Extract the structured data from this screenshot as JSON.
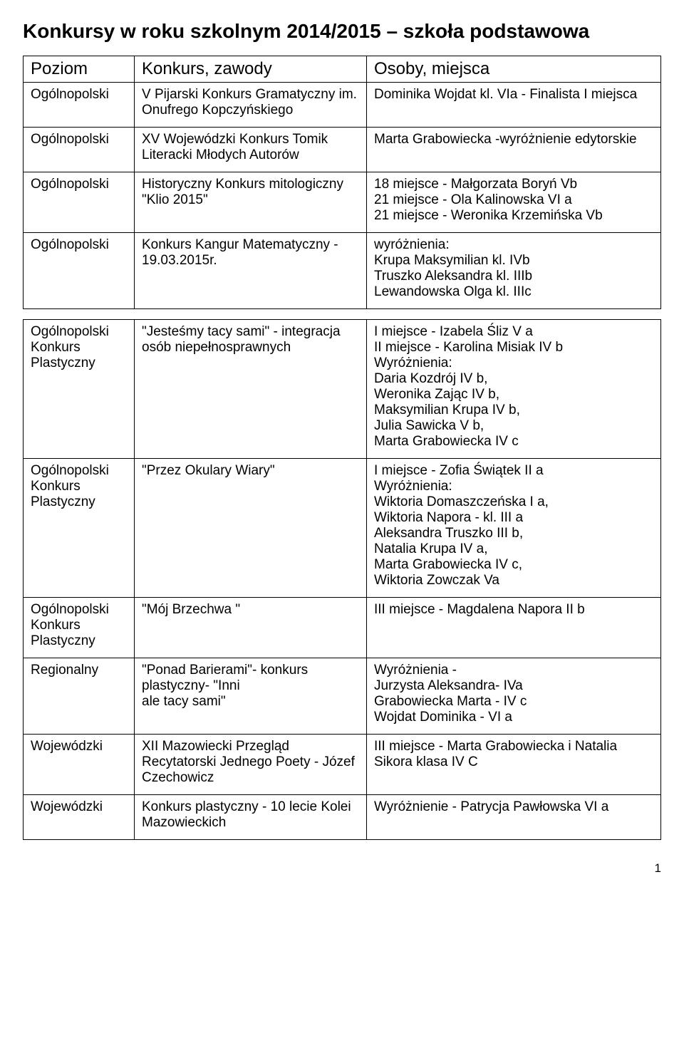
{
  "title": "Konkursy w roku szkolnym 2014/2015 – szkoła podstawowa",
  "columns": [
    "Poziom",
    "Konkurs, zawody",
    "Osoby, miejsca"
  ],
  "group1": [
    {
      "level": "Ogólnopolski",
      "contest": "V Pijarski Konkurs Gramatyczny im. Onufrego Kopczyńskiego",
      "result": "Dominika Wojdat kl. VIa - Finalista I miejsca"
    },
    {
      "level": "Ogólnopolski",
      "contest": "XV Wojewódzki Konkurs Tomik Literacki Młodych Autorów",
      "result": "Marta Grabowiecka -wyróżnienie edytorskie"
    },
    {
      "level": "Ogólnopolski",
      "contest": "Historyczny Konkurs mitologiczny \"Klio 2015\"",
      "result": "18 miejsce - Małgorzata Boryń  Vb\n21 miejsce - Ola Kalinowska VI a\n21 miejsce - Weronika Krzemińska Vb"
    },
    {
      "level": "Ogólnopolski",
      "contest": "Konkurs Kangur Matematyczny - 19.03.2015r.",
      "result": "wyróżnienia:\nKrupa Maksymilian kl. IVb\nTruszko Aleksandra kl. IIIb\nLewandowska Olga kl. IIIc"
    }
  ],
  "group2": [
    {
      "level": "Ogólnopolski Konkurs Plastyczny",
      "contest": "\"Jesteśmy tacy sami\" - integracja osób niepełnosprawnych",
      "result": "I miejsce - Izabela Śliz V a\nII miejsce - Karolina Misiak IV b\nWyróżnienia:\nDaria Kozdrój IV b,\nWeronika Zając IV b,\nMaksymilian Krupa IV b,\nJulia Sawicka V b,\nMarta Grabowiecka IV c"
    },
    {
      "level": "Ogólnopolski Konkurs Plastyczny",
      "contest": "\"Przez Okulary Wiary\"",
      "result": "I miejsce - Zofia Świątek II a\nWyróżnienia:\nWiktoria Domaszczeńska  I a,\nWiktoria Napora - kl. III a\nAleksandra Truszko III b,\nNatalia Krupa IV a,\nMarta Grabowiecka  IV c,\nWiktoria Zowczak Va"
    },
    {
      "level": "Ogólnopolski Konkurs Plastyczny",
      "contest": "\"Mój Brzechwa \"",
      "result": "III miejsce - Magdalena Napora II b"
    },
    {
      "level": "Regionalny",
      "contest": "\"Ponad Barierami\"- konkurs plastyczny- \"Inni\nale tacy sami\"",
      "result": "Wyróżnienia -\nJurzysta Aleksandra- IVa\nGrabowiecka Marta - IV c\nWojdat Dominika - VI a"
    },
    {
      "level": "Wojewódzki",
      "contest": "XII Mazowiecki Przegląd Recytatorski Jednego Poety - Józef Czechowicz",
      "result": "III miejsce - Marta Grabowiecka i Natalia Sikora klasa IV C"
    },
    {
      "level": "Wojewódzki",
      "contest": "Konkurs plastyczny - 10 lecie Kolei Mazowieckich",
      "result": "Wyróżnienie - Patrycja Pawłowska VI a"
    }
  ],
  "page_number": "1"
}
